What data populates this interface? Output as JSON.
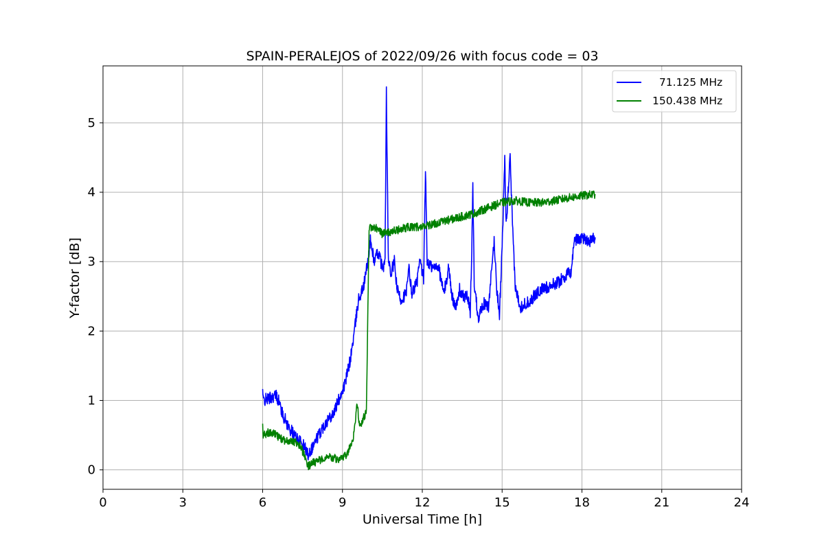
{
  "chart_data": {
    "type": "line",
    "title": "SPAIN-PERALEJOS of 2022/09/26 with focus code = 03",
    "xlabel": "Universal Time [h]",
    "ylabel": "Y-factor [dB]",
    "xlim": [
      0,
      24
    ],
    "ylim": [
      -0.28,
      5.82
    ],
    "xticks": [
      0,
      3,
      6,
      9,
      12,
      15,
      18,
      21,
      24
    ],
    "yticks": [
      0,
      1,
      2,
      3,
      4,
      5
    ],
    "grid": true,
    "legend_position": "top-right",
    "series": [
      {
        "name": "  71.125 MHz",
        "color": "#0000ff",
        "noise": 0.09,
        "points": [
          [
            6.0,
            1.15
          ],
          [
            6.02,
            1.0
          ],
          [
            6.3,
            1.04
          ],
          [
            6.5,
            1.08
          ],
          [
            6.6,
            1.0
          ],
          [
            6.75,
            0.8
          ],
          [
            7.0,
            0.6
          ],
          [
            7.3,
            0.45
          ],
          [
            7.6,
            0.32
          ],
          [
            7.7,
            0.22
          ],
          [
            7.9,
            0.35
          ],
          [
            8.1,
            0.5
          ],
          [
            8.4,
            0.7
          ],
          [
            8.7,
            0.85
          ],
          [
            8.9,
            1.05
          ],
          [
            9.1,
            1.25
          ],
          [
            9.3,
            1.6
          ],
          [
            9.45,
            2.0
          ],
          [
            9.6,
            2.45
          ],
          [
            9.8,
            2.65
          ],
          [
            9.95,
            3.0
          ],
          [
            10.05,
            3.3
          ],
          [
            10.2,
            3.0
          ],
          [
            10.35,
            3.15
          ],
          [
            10.5,
            2.9
          ],
          [
            10.6,
            3.0
          ],
          [
            10.65,
            5.45
          ],
          [
            10.72,
            3.1
          ],
          [
            10.8,
            2.8
          ],
          [
            10.95,
            3.0
          ],
          [
            11.05,
            2.6
          ],
          [
            11.2,
            2.45
          ],
          [
            11.4,
            2.55
          ],
          [
            11.5,
            2.9
          ],
          [
            11.6,
            2.55
          ],
          [
            11.8,
            2.7
          ],
          [
            11.9,
            3.0
          ],
          [
            12.05,
            2.75
          ],
          [
            12.12,
            4.35
          ],
          [
            12.18,
            3.0
          ],
          [
            12.4,
            2.9
          ],
          [
            12.6,
            2.95
          ],
          [
            12.8,
            2.55
          ],
          [
            12.9,
            2.7
          ],
          [
            13.0,
            2.95
          ],
          [
            13.1,
            2.5
          ],
          [
            13.3,
            2.35
          ],
          [
            13.4,
            2.6
          ],
          [
            13.5,
            2.5
          ],
          [
            13.7,
            2.5
          ],
          [
            13.8,
            2.25
          ],
          [
            13.85,
            3.0
          ],
          [
            13.9,
            4.1
          ],
          [
            13.95,
            2.7
          ],
          [
            14.1,
            2.2
          ],
          [
            14.3,
            2.4
          ],
          [
            14.5,
            2.35
          ],
          [
            14.6,
            2.85
          ],
          [
            14.7,
            3.3
          ],
          [
            14.8,
            2.6
          ],
          [
            14.9,
            2.25
          ],
          [
            15.0,
            3.2
          ],
          [
            15.1,
            4.45
          ],
          [
            15.15,
            3.5
          ],
          [
            15.3,
            4.5
          ],
          [
            15.4,
            3.4
          ],
          [
            15.5,
            2.6
          ],
          [
            15.7,
            2.35
          ],
          [
            15.9,
            2.4
          ],
          [
            16.1,
            2.45
          ],
          [
            16.3,
            2.55
          ],
          [
            16.5,
            2.6
          ],
          [
            16.8,
            2.65
          ],
          [
            17.1,
            2.7
          ],
          [
            17.4,
            2.8
          ],
          [
            17.6,
            2.85
          ],
          [
            17.7,
            3.3
          ],
          [
            18.0,
            3.35
          ],
          [
            18.3,
            3.3
          ],
          [
            18.5,
            3.35
          ]
        ]
      },
      {
        "name": "150.438 MHz",
        "color": "#008000",
        "noise": 0.06,
        "points": [
          [
            6.0,
            0.65
          ],
          [
            6.02,
            0.5
          ],
          [
            6.3,
            0.55
          ],
          [
            6.5,
            0.5
          ],
          [
            6.8,
            0.42
          ],
          [
            7.0,
            0.4
          ],
          [
            7.2,
            0.4
          ],
          [
            7.4,
            0.35
          ],
          [
            7.6,
            0.18
          ],
          [
            7.7,
            0.05
          ],
          [
            7.9,
            0.1
          ],
          [
            8.2,
            0.15
          ],
          [
            8.5,
            0.2
          ],
          [
            8.8,
            0.15
          ],
          [
            9.0,
            0.15
          ],
          [
            9.2,
            0.25
          ],
          [
            9.4,
            0.45
          ],
          [
            9.55,
            0.95
          ],
          [
            9.65,
            0.6
          ],
          [
            9.8,
            0.75
          ],
          [
            9.9,
            0.85
          ],
          [
            10.0,
            3.5
          ],
          [
            10.2,
            3.5
          ],
          [
            10.5,
            3.4
          ],
          [
            11.0,
            3.45
          ],
          [
            11.5,
            3.5
          ],
          [
            12.0,
            3.5
          ],
          [
            12.5,
            3.55
          ],
          [
            13.0,
            3.6
          ],
          [
            13.5,
            3.65
          ],
          [
            14.0,
            3.7
          ],
          [
            14.5,
            3.78
          ],
          [
            15.0,
            3.85
          ],
          [
            15.5,
            3.88
          ],
          [
            16.0,
            3.85
          ],
          [
            16.5,
            3.85
          ],
          [
            17.0,
            3.88
          ],
          [
            17.5,
            3.92
          ],
          [
            18.0,
            3.95
          ],
          [
            18.5,
            3.97
          ]
        ]
      }
    ]
  }
}
